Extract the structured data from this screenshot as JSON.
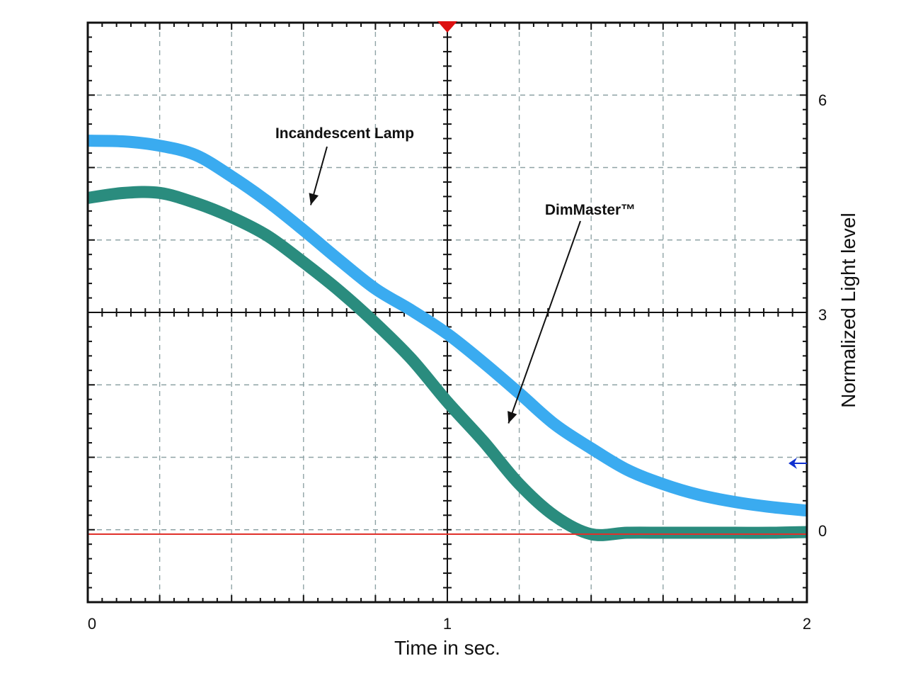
{
  "chart_data": {
    "type": "line",
    "title": "",
    "xlabel": "Time in sec.",
    "ylabel": "Normalized  Light level",
    "xlim": [
      0,
      2
    ],
    "ylim": [
      -1,
      7.1
    ],
    "x_ticks": [
      0,
      1,
      2
    ],
    "y_ticks": [
      0,
      3,
      6
    ],
    "grid": true,
    "zero_line_color": "#e0302a",
    "series": [
      {
        "name": "Incandescent Lamp",
        "color": "#3aabf0",
        "x": [
          0,
          0.1,
          0.2,
          0.3,
          0.4,
          0.5,
          0.6,
          0.7,
          0.8,
          0.9,
          1.0,
          1.1,
          1.2,
          1.3,
          1.4,
          1.5,
          1.6,
          1.7,
          1.8,
          1.9,
          2.0
        ],
        "y": [
          5.45,
          5.44,
          5.38,
          5.25,
          4.95,
          4.6,
          4.2,
          3.78,
          3.38,
          3.08,
          2.75,
          2.35,
          1.92,
          1.48,
          1.15,
          0.85,
          0.65,
          0.5,
          0.4,
          0.33,
          0.28
        ]
      },
      {
        "name": "DimMaster™",
        "color": "#2a8c7e",
        "x": [
          0,
          0.1,
          0.2,
          0.3,
          0.4,
          0.5,
          0.6,
          0.7,
          0.8,
          0.9,
          1.0,
          1.1,
          1.2,
          1.3,
          1.4,
          1.5,
          1.6,
          1.7,
          1.8,
          1.9,
          2.0
        ],
        "y": [
          4.65,
          4.72,
          4.72,
          4.58,
          4.38,
          4.12,
          3.75,
          3.35,
          2.9,
          2.4,
          1.8,
          1.25,
          0.65,
          0.2,
          -0.05,
          -0.03,
          -0.03,
          -0.03,
          -0.03,
          -0.03,
          -0.02
        ]
      }
    ],
    "annotations": [
      {
        "text": "Incandescent Lamp",
        "series": "Incandescent Lamp",
        "x": 0.62,
        "y": 4.55
      },
      {
        "text": "DimMaster™",
        "series": "DimMaster™",
        "x": 1.17,
        "y": 1.5
      }
    ],
    "markers": [
      {
        "name": "trigger-marker",
        "color": "#dd1111",
        "edge": "top",
        "x": 1.0
      },
      {
        "name": "level-marker",
        "color": "#1030d0",
        "edge": "right",
        "y": 1.0
      }
    ]
  }
}
